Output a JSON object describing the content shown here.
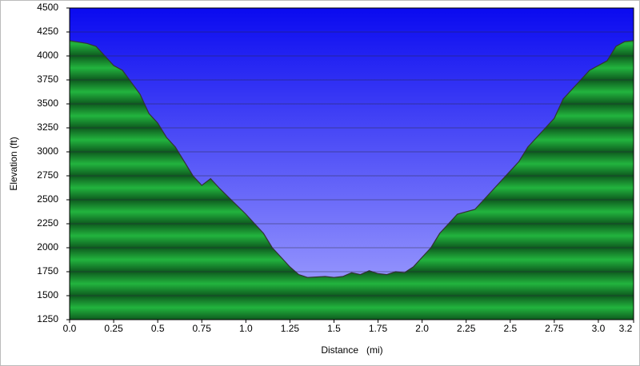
{
  "chart_data": {
    "type": "area",
    "xlabel": "Distance   (mi)",
    "ylabel": "Elevation (ft)",
    "x": [
      0,
      0.1,
      0.15,
      0.25,
      0.3,
      0.4,
      0.45,
      0.5,
      0.55,
      0.6,
      0.65,
      0.7,
      0.75,
      0.8,
      0.85,
      0.9,
      1.0,
      1.05,
      1.1,
      1.15,
      1.2,
      1.25,
      1.3,
      1.35,
      1.45,
      1.5,
      1.55,
      1.6,
      1.65,
      1.7,
      1.75,
      1.8,
      1.85,
      1.9,
      1.95,
      2.0,
      2.05,
      2.1,
      2.15,
      2.2,
      2.3,
      2.35,
      2.4,
      2.5,
      2.55,
      2.6,
      2.7,
      2.75,
      2.8,
      2.9,
      2.95,
      3.05,
      3.1,
      3.15,
      3.2
    ],
    "values": [
      4160,
      4130,
      4100,
      3900,
      3850,
      3600,
      3400,
      3300,
      3150,
      3050,
      2900,
      2750,
      2650,
      2720,
      2620,
      2530,
      2350,
      2250,
      2150,
      2000,
      1900,
      1800,
      1720,
      1690,
      1700,
      1690,
      1700,
      1740,
      1720,
      1760,
      1730,
      1720,
      1750,
      1740,
      1800,
      1900,
      2000,
      2150,
      2250,
      2350,
      2400,
      2500,
      2600,
      2800,
      2900,
      3050,
      3250,
      3350,
      3550,
      3750,
      3850,
      3950,
      4100,
      4150,
      4160
    ],
    "color": "#1c9b3c",
    "line_color": "#333333",
    "xlim": [
      0,
      3.2
    ],
    "xticks": [
      {
        "value": 0,
        "label": "0.0"
      },
      0.25,
      0.5,
      0.75,
      {
        "value": 1,
        "label": "1.0"
      },
      1.25,
      1.5,
      1.75,
      {
        "value": 2,
        "label": "2.0"
      },
      2.25,
      2.5,
      2.75,
      {
        "value": 3,
        "label": "3.0"
      },
      3.2
    ],
    "ylim": [
      1250,
      4500
    ],
    "yticks": [
      1250,
      1500,
      1750,
      2000,
      2250,
      2500,
      2750,
      3000,
      3250,
      3500,
      3750,
      4000,
      4250,
      4500
    ],
    "grid": true
  }
}
